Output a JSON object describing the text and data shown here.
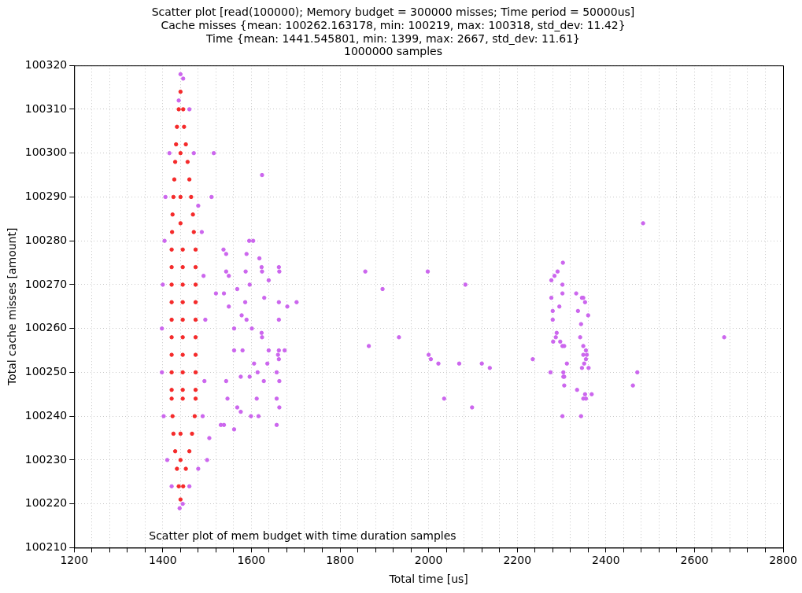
{
  "chart_data": {
    "type": "scatter",
    "title": "Scatter plot [read(100000); Memory budget = 300000 misses; Time period = 50000us]\nCache misses {mean: 100262.163178, min: 100219, max: 100318, std_dev: 11.42}\nTime {mean: 1441.545801, min: 1399, max: 2667, std_dev: 11.61}\n1000000 samples",
    "xlabel": "Total time [us]",
    "ylabel": "Total cache misses [amount]",
    "xlim": [
      1200,
      2800
    ],
    "xticks": [
      1200,
      {
        "value": 1240,
        "label": null
      },
      {
        "value": 1280,
        "label": null
      },
      {
        "value": 1320,
        "label": null
      },
      {
        "value": 1360,
        "label": null
      },
      1400,
      {
        "value": 1440,
        "label": null
      },
      {
        "value": 1480,
        "label": null
      },
      {
        "value": 1520,
        "label": null
      },
      {
        "value": 1560,
        "label": null
      },
      1600,
      {
        "value": 1640,
        "label": null
      },
      {
        "value": 1680,
        "label": null
      },
      {
        "value": 1720,
        "label": null
      },
      {
        "value": 1760,
        "label": null
      },
      1800,
      {
        "value": 1840,
        "label": null
      },
      {
        "value": 1880,
        "label": null
      },
      {
        "value": 1920,
        "label": null
      },
      {
        "value": 1960,
        "label": null
      },
      2000,
      {
        "value": 2040,
        "label": null
      },
      {
        "value": 2080,
        "label": null
      },
      {
        "value": 2120,
        "label": null
      },
      {
        "value": 2160,
        "label": null
      },
      2200,
      {
        "value": 2240,
        "label": null
      },
      {
        "value": 2280,
        "label": null
      },
      {
        "value": 2320,
        "label": null
      },
      {
        "value": 2360,
        "label": null
      },
      2400,
      {
        "value": 2440,
        "label": null
      },
      {
        "value": 2480,
        "label": null
      },
      {
        "value": 2520,
        "label": null
      },
      {
        "value": 2560,
        "label": null
      },
      2600,
      {
        "value": 2640,
        "label": null
      },
      {
        "value": 2680,
        "label": null
      },
      {
        "value": 2720,
        "label": null
      },
      {
        "value": 2760,
        "label": null
      },
      2800
    ],
    "ylim": [
      100210,
      100320
    ],
    "yticks": [
      100210,
      100220,
      100230,
      100240,
      100250,
      100260,
      100270,
      100280,
      100290,
      100300,
      100310,
      100320
    ],
    "grid": true,
    "line_style": "dotted",
    "annotations": [
      "Scatter plot of mem budget with time duration samples"
    ],
    "series": [
      {
        "color": "#cc66ee",
        "x": [
          1440,
          1446,
          1436,
          1460,
          1415,
          1470,
          1406,
          1480,
          1404,
          1488,
          1400,
          1492,
          1398,
          1496,
          1398,
          1494,
          1402,
          1490,
          1410,
          1480,
          1420,
          1460,
          1438,
          1445,
          1510,
          1520,
          1505,
          1515,
          1500,
          1624,
          1595,
          1604,
          1537,
          1543,
          1589,
          1618,
          1623,
          1662,
          1624,
          1663,
          1543,
          1587,
          1549,
          1639,
          1596,
          1568,
          1538,
          1629,
          1662,
          1702,
          1586,
          1681,
          1549,
          1578,
          1662,
          1589,
          1561,
          1601,
          1623,
          1624,
          1639,
          1662,
          1675,
          1580,
          1561,
          1660,
          1662,
          1636,
          1606,
          1614,
          1657,
          1576,
          1596,
          1628,
          1663,
          1543,
          1546,
          1612,
          1657,
          1568,
          1663,
          1576,
          1599,
          1616,
          1657,
          1531,
          1538,
          1561,
          1857,
          1998,
          1896,
          2083,
          1933,
          1865,
          2000,
          2005,
          2022,
          2069,
          2120,
          2138,
          2235,
          2035,
          2098,
          2484,
          2303,
          2291,
          2284,
          2277,
          2302,
          2302,
          2333,
          2346,
          2349,
          2277,
          2353,
          2295,
          2280,
          2337,
          2360,
          2280,
          2344,
          2289,
          2287,
          2342,
          2667,
          2281,
          2297,
          2302,
          2306,
          2349,
          2355,
          2349,
          2357,
          2355,
          2312,
          2351,
          2346,
          2361,
          2275,
          2304,
          2471,
          2304,
          2306,
          2306,
          2461,
          2335,
          2353,
          2368,
          2349,
          2355,
          2302,
          2344
        ],
        "values": [
          100318,
          100317,
          100312,
          100310,
          100300,
          100300,
          100290,
          100288,
          100280,
          100282,
          100270,
          100272,
          100260,
          100262,
          100250,
          100248,
          100240,
          100240,
          100230,
          100228,
          100224,
          100224,
          100219,
          100220,
          100290,
          100268,
          100235,
          100300,
          100230,
          100295,
          100280,
          100280,
          100278,
          100277,
          100277,
          100276,
          100274,
          100274,
          100273,
          100273,
          100273,
          100273,
          100272,
          100271,
          100270,
          100269,
          100268,
          100267,
          100266,
          100266,
          100266,
          100265,
          100265,
          100263,
          100262,
          100262,
          100260,
          100260,
          100259,
          100258,
          100255,
          100255,
          100255,
          100255,
          100255,
          100254,
          100253,
          100252,
          100252,
          100250,
          100250,
          100249,
          100249,
          100248,
          100248,
          100248,
          100244,
          100244,
          100244,
          100242,
          100242,
          100241,
          100240,
          100240,
          100238,
          100238,
          100238,
          100237,
          100273,
          100273,
          100269,
          100270,
          100258,
          100256,
          100254,
          100253,
          100252,
          100252,
          100252,
          100251,
          100253,
          100244,
          100242,
          100284,
          100275,
          100273,
          100272,
          100271,
          100270,
          100268,
          100268,
          100267,
          100267,
          100267,
          100266,
          100265,
          100264,
          100264,
          100263,
          100262,
          100261,
          100259,
          100258,
          100258,
          100258,
          100257,
          100257,
          100256,
          100256,
          100256,
          100255,
          100254,
          100254,
          100253,
          100252,
          100252,
          100251,
          100251,
          100250,
          100250,
          100250,
          100249,
          100249,
          100247,
          100247,
          100246,
          100245,
          100245,
          100244,
          100244,
          100240,
          100240
        ]
      },
      {
        "color": "#f52a2a",
        "x": [
          1440,
          1436,
          1446,
          1432,
          1448,
          1430,
          1452,
          1428,
          1456,
          1426,
          1460,
          1424,
          1464,
          1422,
          1468,
          1421,
          1470,
          1420,
          1445,
          1474,
          1420,
          1445,
          1474,
          1420,
          1445,
          1474,
          1420,
          1445,
          1474,
          1420,
          1445,
          1474,
          1420,
          1445,
          1474,
          1420,
          1445,
          1474,
          1420,
          1445,
          1474,
          1420,
          1445,
          1474,
          1420,
          1445,
          1474,
          1422,
          1472,
          1424,
          1466,
          1428,
          1460,
          1432,
          1452,
          1436,
          1446,
          1440,
          1440,
          1440,
          1440,
          1440,
          1440
        ],
        "values": [
          100314,
          100310,
          100310,
          100306,
          100306,
          100302,
          100302,
          100298,
          100298,
          100294,
          100294,
          100290,
          100290,
          100286,
          100286,
          100282,
          100282,
          100278,
          100278,
          100278,
          100274,
          100274,
          100274,
          100270,
          100270,
          100270,
          100266,
          100266,
          100266,
          100262,
          100262,
          100262,
          100258,
          100258,
          100258,
          100254,
          100254,
          100254,
          100250,
          100250,
          100250,
          100246,
          100246,
          100246,
          100244,
          100244,
          100244,
          100240,
          100240,
          100236,
          100236,
          100232,
          100232,
          100228,
          100228,
          100224,
          100224,
          100221,
          100300,
          100290,
          100284,
          100236,
          100230
        ]
      }
    ]
  }
}
